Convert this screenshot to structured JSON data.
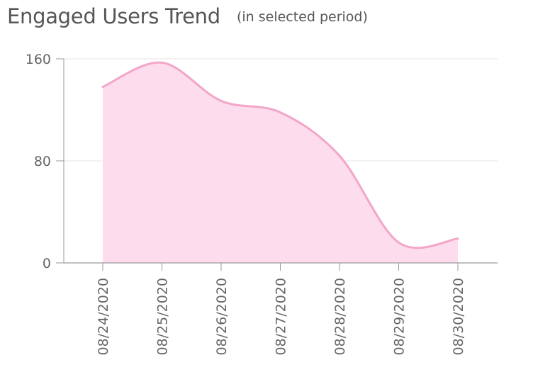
{
  "chart_data": {
    "type": "area",
    "title": "Engaged Users Trend",
    "subtitle": "(in selected period)",
    "xlabel": "",
    "ylabel": "",
    "categories": [
      "08/24/2020",
      "08/25/2020",
      "08/26/2020",
      "08/27/2020",
      "08/28/2020",
      "08/29/2020",
      "08/30/2020"
    ],
    "series": [
      {
        "values": [
          138,
          157,
          127,
          118,
          84,
          16,
          19
        ]
      }
    ],
    "ylim": [
      0,
      160
    ],
    "yticks": [
      "0",
      "80",
      "160"
    ],
    "grid": true,
    "legend": "none",
    "colors": {
      "line": "#f3a6c8",
      "fill": "#fddced",
      "grid": "#e6e6e6",
      "axis": "#9a9a9a",
      "text": "#666666",
      "title": "#555555"
    }
  }
}
